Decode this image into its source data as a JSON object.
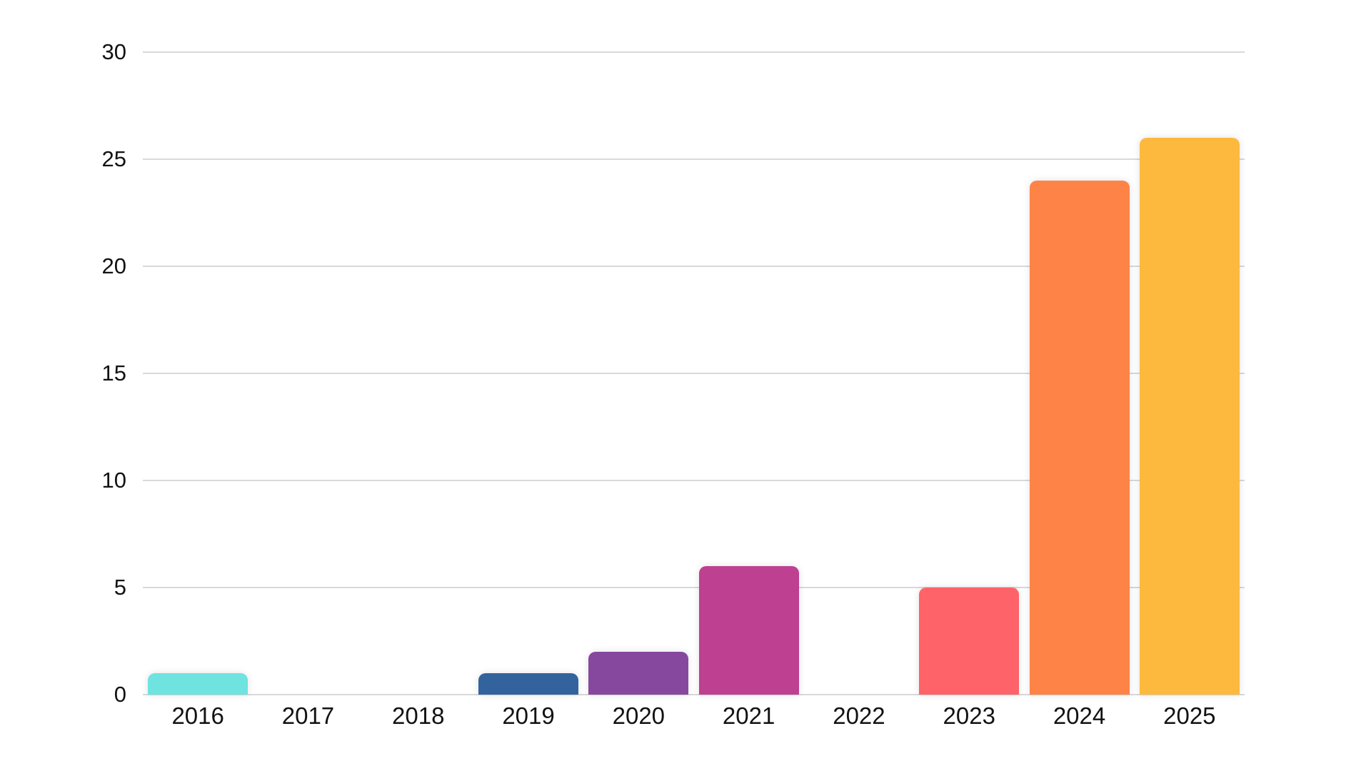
{
  "chart_data": {
    "type": "bar",
    "title": "",
    "xlabel": "",
    "ylabel": "",
    "categories": [
      "2016",
      "2017",
      "2018",
      "2019",
      "2020",
      "2021",
      "2022",
      "2023",
      "2024",
      "2025"
    ],
    "values": [
      1,
      0,
      0,
      1,
      2,
      6,
      0,
      5,
      24,
      26
    ],
    "bar_colors": [
      "#6ee3e0",
      null,
      null,
      "#33639d",
      "#86489e",
      "#bd4190",
      null,
      "#fd6368",
      "#fd8347",
      "#fdb93e"
    ],
    "ylim": [
      0,
      30
    ],
    "yticks": [
      0,
      5,
      10,
      15,
      20,
      25,
      30
    ],
    "grid": true,
    "legend": false,
    "gridline_color": "#d9d9d9",
    "axis_text_color": "#121212",
    "background_color": "#ffffff"
  }
}
